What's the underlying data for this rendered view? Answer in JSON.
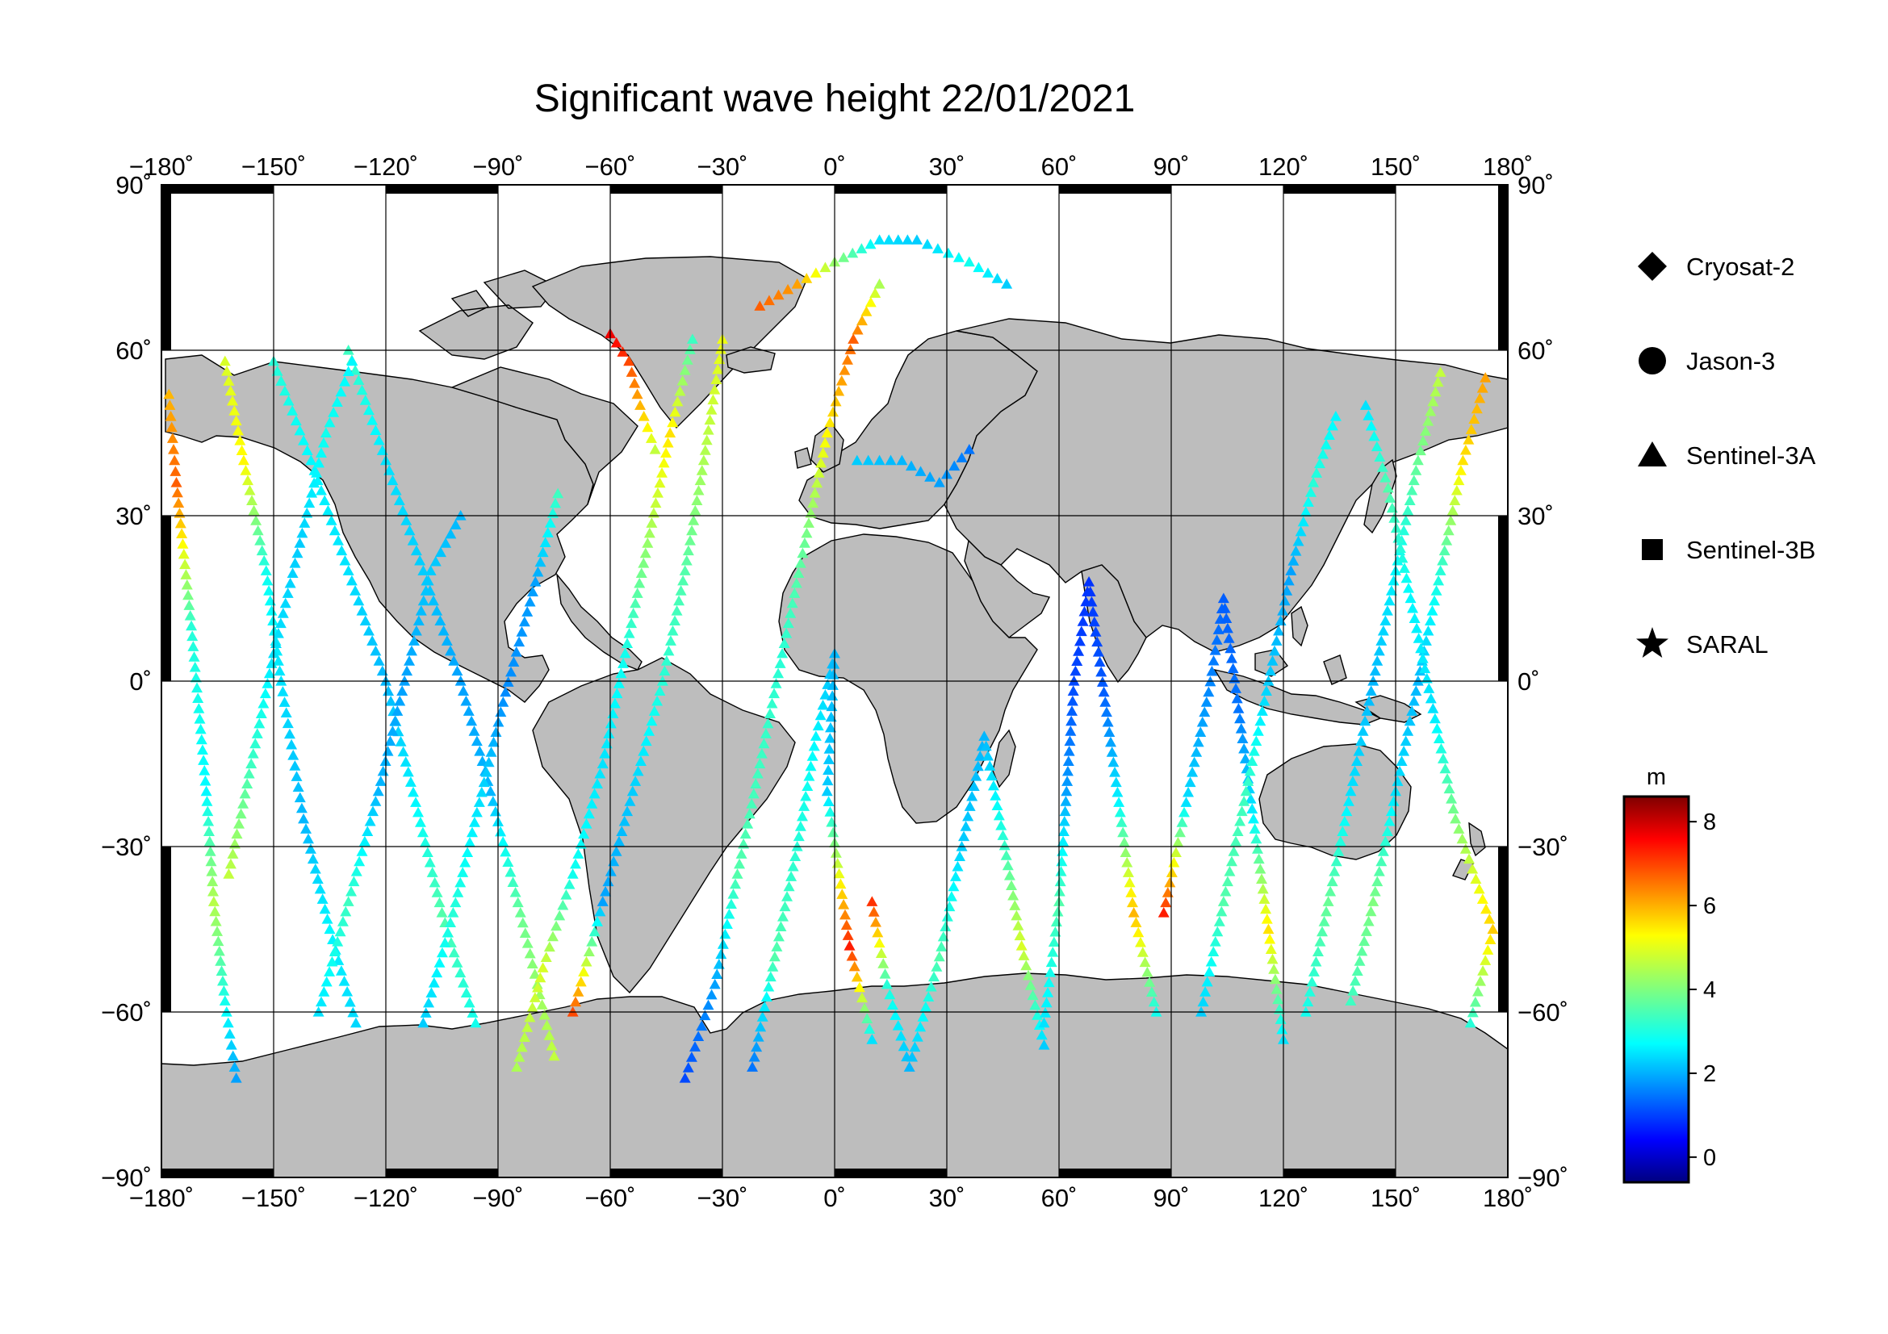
{
  "title": "Significant wave height 22/01/2021",
  "map": {
    "projection": "equirectangular",
    "lon_range": [
      -180,
      180
    ],
    "lat_range": [
      -90,
      90
    ],
    "lon_ticks": [
      -180,
      -150,
      -120,
      -90,
      -60,
      -30,
      0,
      30,
      60,
      90,
      120,
      150,
      180
    ],
    "lat_ticks": [
      -90,
      -60,
      -30,
      0,
      30,
      60,
      90
    ],
    "lon_tick_labels": [
      "−180˚",
      "−150˚",
      "−120˚",
      "−90˚",
      "−60˚",
      "−30˚",
      "0˚",
      "30˚",
      "60˚",
      "90˚",
      "120˚",
      "150˚",
      "180˚"
    ],
    "lat_tick_labels": [
      "−90˚",
      "−60˚",
      "−30˚",
      "0˚",
      "30˚",
      "60˚",
      "90˚"
    ],
    "grid": true,
    "land_color": "#bdbdbd"
  },
  "legend": {
    "placement": "right",
    "items": [
      {
        "symbol": "diamond",
        "label": "Cryosat-2"
      },
      {
        "symbol": "circle",
        "label": "Jason-3"
      },
      {
        "symbol": "triangle",
        "label": "Sentinel-3A"
      },
      {
        "symbol": "square",
        "label": "Sentinel-3B"
      },
      {
        "symbol": "star",
        "label": "SARAL"
      }
    ]
  },
  "colorbar": {
    "unit": "m",
    "min": -0.6,
    "max": 8.6,
    "ticks": [
      0,
      2,
      4,
      6,
      8
    ],
    "tick_labels": [
      "0",
      "2",
      "4",
      "6",
      "8"
    ],
    "colormap": "jet"
  },
  "chart_data": {
    "type": "scatter",
    "title": "Significant wave height 22/01/2021",
    "variable": "significant wave height (m)",
    "tracks": [
      {
        "symbol": "triangle",
        "points": [
          [
            -178,
            52,
            5.8
          ],
          [
            -176,
            36,
            6.6
          ],
          [
            -172,
            10,
            3.2
          ],
          [
            -168,
            -20,
            2.8
          ],
          [
            -166,
            -40,
            4.5
          ],
          [
            -163,
            -58,
            3.0
          ],
          [
            -160,
            -72,
            2.0
          ]
        ]
      },
      {
        "symbol": "triangle",
        "points": [
          [
            -163,
            58,
            4.8
          ],
          [
            -158,
            40,
            5.2
          ],
          [
            -152,
            20,
            3.0
          ],
          [
            -148,
            0,
            2.6
          ],
          [
            -142,
            -25,
            2.2
          ],
          [
            -135,
            -45,
            2.8
          ],
          [
            -128,
            -62,
            2.5
          ]
        ]
      },
      {
        "symbol": "triangle",
        "points": [
          [
            -150,
            58,
            3.2
          ],
          [
            -140,
            40,
            2.8
          ],
          [
            -130,
            20,
            2.6
          ],
          [
            -120,
            0,
            2.2
          ],
          [
            -112,
            -22,
            2.8
          ],
          [
            -105,
            -42,
            3.6
          ],
          [
            -96,
            -62,
            3.0
          ]
        ]
      },
      {
        "symbol": "triangle",
        "points": [
          [
            -130,
            60,
            3.4
          ],
          [
            -120,
            40,
            2.6
          ],
          [
            -110,
            20,
            2.4
          ],
          [
            -100,
            0,
            2.0
          ],
          [
            -92,
            -20,
            2.2
          ],
          [
            -84,
            -42,
            3.8
          ],
          [
            -75,
            -68,
            4.6
          ]
        ]
      },
      {
        "symbol": "triangle",
        "points": [
          [
            -162,
            -35,
            4.6
          ],
          [
            -156,
            -15,
            3.4
          ],
          [
            -150,
            5,
            2.6
          ],
          [
            -143,
            25,
            2.4
          ],
          [
            -136,
            45,
            3.0
          ],
          [
            -129,
            58,
            2.8
          ]
        ]
      },
      {
        "symbol": "triangle",
        "points": [
          [
            -138,
            -60,
            2.6
          ],
          [
            -130,
            -40,
            3.4
          ],
          [
            -122,
            -20,
            2.2
          ],
          [
            -115,
            0,
            2.0
          ],
          [
            -108,
            20,
            2.4
          ],
          [
            -100,
            30,
            2.2
          ]
        ]
      },
      {
        "symbol": "triangle",
        "points": [
          [
            -110,
            -62,
            2.4
          ],
          [
            -102,
            -42,
            3.2
          ],
          [
            -95,
            -22,
            2.6
          ],
          [
            -88,
            -2,
            1.8
          ],
          [
            -80,
            18,
            2.0
          ],
          [
            -74,
            34,
            3.4
          ]
        ]
      },
      {
        "symbol": "triangle",
        "points": [
          [
            -85,
            -70,
            4.4
          ],
          [
            -78,
            -52,
            4.8
          ],
          [
            -70,
            -35,
            3.0
          ],
          [
            -62,
            -15,
            2.6
          ],
          [
            -56,
            5,
            3.0
          ],
          [
            -50,
            25,
            4.2
          ],
          [
            -44,
            45,
            5.4
          ],
          [
            -38,
            62,
            3.4
          ]
        ]
      },
      {
        "symbol": "triangle",
        "points": [
          [
            -70,
            -60,
            6.8
          ],
          [
            -62,
            -40,
            2.0
          ],
          [
            -54,
            -20,
            2.4
          ],
          [
            -46,
            0,
            3.2
          ],
          [
            -40,
            20,
            3.6
          ],
          [
            -35,
            40,
            4.4
          ],
          [
            -30,
            62,
            5.0
          ]
        ]
      },
      {
        "symbol": "triangle",
        "points": [
          [
            -40,
            -72,
            1.2
          ],
          [
            -32,
            -55,
            2.0
          ],
          [
            -26,
            -35,
            3.6
          ],
          [
            -20,
            -15,
            3.4
          ],
          [
            -14,
            5,
            3.2
          ],
          [
            -8,
            25,
            3.8
          ],
          [
            -2,
            45,
            5.2
          ],
          [
            5,
            62,
            6.6
          ],
          [
            12,
            72,
            4.4
          ]
        ]
      },
      {
        "symbol": "triangle",
        "points": [
          [
            -22,
            -70,
            1.6
          ],
          [
            -16,
            -50,
            3.6
          ],
          [
            -10,
            -30,
            3.2
          ],
          [
            -5,
            -10,
            2.8
          ],
          [
            0,
            5,
            2.2
          ],
          [
            -2,
            -20,
            2.4
          ],
          [
            4,
            -48,
            7.2
          ],
          [
            10,
            -65,
            2.6
          ]
        ]
      },
      {
        "symbol": "triangle",
        "points": [
          [
            10,
            -40,
            7.0
          ],
          [
            14,
            -55,
            3.2
          ],
          [
            20,
            -70,
            2.2
          ],
          [
            28,
            -50,
            3.6
          ],
          [
            34,
            -30,
            2.4
          ],
          [
            40,
            -10,
            2.2
          ],
          [
            45,
            -28,
            3.2
          ],
          [
            50,
            -48,
            4.8
          ],
          [
            56,
            -66,
            2.4
          ]
        ]
      },
      {
        "symbol": "triangle",
        "points": [
          [
            56,
            -62,
            2.6
          ],
          [
            60,
            -40,
            3.6
          ],
          [
            62,
            -20,
            2.0
          ],
          [
            64,
            0,
            1.2
          ],
          [
            68,
            18,
            1.0
          ],
          [
            72,
            -2,
            1.4
          ],
          [
            76,
            -22,
            2.8
          ],
          [
            80,
            -42,
            5.8
          ],
          [
            86,
            -60,
            3.0
          ]
        ]
      },
      {
        "symbol": "triangle",
        "points": [
          [
            88,
            -42,
            7.2
          ],
          [
            94,
            -22,
            2.6
          ],
          [
            100,
            -2,
            1.8
          ],
          [
            104,
            15,
            1.4
          ],
          [
            108,
            -5,
            1.6
          ],
          [
            112,
            -25,
            2.8
          ],
          [
            116,
            -45,
            5.4
          ],
          [
            120,
            -65,
            2.6
          ]
        ]
      },
      {
        "symbol": "triangle",
        "points": [
          [
            98,
            -60,
            2.4
          ],
          [
            104,
            -40,
            3.6
          ],
          [
            110,
            -20,
            3.4
          ],
          [
            116,
            0,
            2.4
          ],
          [
            122,
            20,
            2.0
          ],
          [
            128,
            36,
            3.2
          ],
          [
            134,
            48,
            2.8
          ]
        ]
      },
      {
        "symbol": "triangle",
        "points": [
          [
            126,
            -60,
            3.0
          ],
          [
            132,
            -40,
            3.8
          ],
          [
            138,
            -20,
            2.6
          ],
          [
            144,
            0,
            2.2
          ],
          [
            150,
            20,
            2.8
          ],
          [
            156,
            40,
            3.8
          ],
          [
            162,
            56,
            4.6
          ]
        ]
      },
      {
        "symbol": "triangle",
        "points": [
          [
            138,
            -58,
            3.4
          ],
          [
            144,
            -40,
            4.0
          ],
          [
            150,
            -20,
            2.6
          ],
          [
            156,
            0,
            2.2
          ],
          [
            162,
            20,
            3.2
          ],
          [
            168,
            40,
            5.4
          ],
          [
            174,
            55,
            6.0
          ]
        ]
      },
      {
        "symbol": "triangle",
        "points": [
          [
            170,
            -62,
            3.2
          ],
          [
            176,
            -45,
            5.6
          ],
          [
            166,
            -25,
            4.0
          ],
          [
            160,
            -5,
            2.6
          ],
          [
            154,
            15,
            2.8
          ],
          [
            148,
            35,
            3.6
          ],
          [
            142,
            50,
            2.6
          ]
        ]
      },
      {
        "symbol": "triangle",
        "points": [
          [
            -20,
            68,
            6.6
          ],
          [
            -10,
            72,
            6.0
          ],
          [
            0,
            76,
            4.2
          ],
          [
            12,
            80,
            2.6
          ],
          [
            22,
            80,
            2.4
          ],
          [
            36,
            76,
            3.0
          ],
          [
            46,
            72,
            2.4
          ]
        ]
      },
      {
        "symbol": "triangle",
        "points": [
          [
            -60,
            63,
            7.6
          ],
          [
            -55,
            58,
            6.8
          ],
          [
            -52,
            50,
            5.8
          ],
          [
            -48,
            42,
            4.6
          ]
        ]
      },
      {
        "symbol": "triangle",
        "points": [
          [
            6,
            40,
            2.4
          ],
          [
            18,
            40,
            2.2
          ],
          [
            28,
            36,
            2.0
          ],
          [
            36,
            42,
            1.6
          ]
        ]
      }
    ]
  }
}
